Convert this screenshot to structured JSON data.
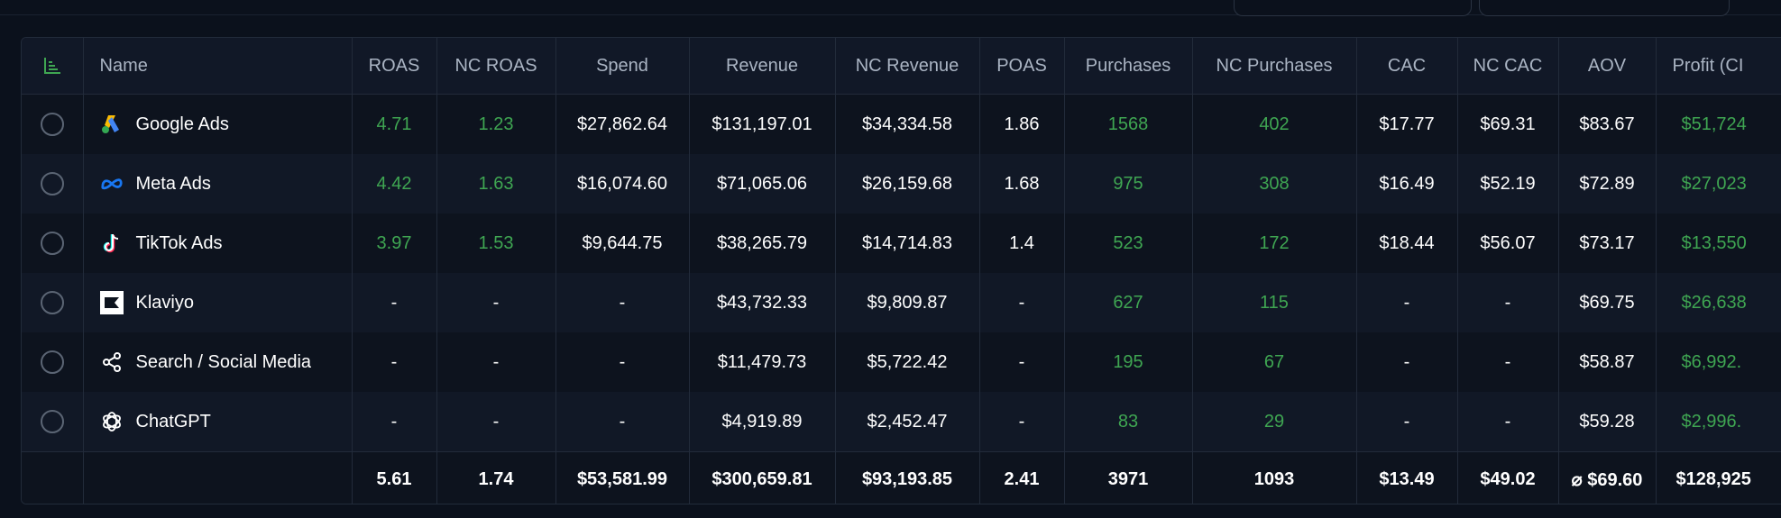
{
  "table": {
    "columns": [
      "Name",
      "ROAS",
      "NC ROAS",
      "Spend",
      "Revenue",
      "NC Revenue",
      "POAS",
      "Purchases",
      "NC Purchases",
      "CAC",
      "NC CAC",
      "AOV",
      "Profit (CI"
    ],
    "rows": [
      {
        "name": "Google Ads",
        "icon": "google-ads-icon",
        "roas": "4.71",
        "nc_roas": "1.23",
        "spend": "$27,862.64",
        "revenue": "$131,197.01",
        "nc_revenue": "$34,334.58",
        "poas": "1.86",
        "purchases": "1568",
        "nc_purchases": "402",
        "cac": "$17.77",
        "nc_cac": "$69.31",
        "aov": "$83.67",
        "profit": "$51,724"
      },
      {
        "name": "Meta Ads",
        "icon": "meta-icon",
        "roas": "4.42",
        "nc_roas": "1.63",
        "spend": "$16,074.60",
        "revenue": "$71,065.06",
        "nc_revenue": "$26,159.68",
        "poas": "1.68",
        "purchases": "975",
        "nc_purchases": "308",
        "cac": "$16.49",
        "nc_cac": "$52.19",
        "aov": "$72.89",
        "profit": "$27,023"
      },
      {
        "name": "TikTok Ads",
        "icon": "tiktok-icon",
        "roas": "3.97",
        "nc_roas": "1.53",
        "spend": "$9,644.75",
        "revenue": "$38,265.79",
        "nc_revenue": "$14,714.83",
        "poas": "1.4",
        "purchases": "523",
        "nc_purchases": "172",
        "cac": "$18.44",
        "nc_cac": "$56.07",
        "aov": "$73.17",
        "profit": "$13,550"
      },
      {
        "name": "Klaviyo",
        "icon": "klaviyo-icon",
        "roas": "-",
        "nc_roas": "-",
        "spend": "-",
        "revenue": "$43,732.33",
        "nc_revenue": "$9,809.87",
        "poas": "-",
        "purchases": "627",
        "nc_purchases": "115",
        "cac": "-",
        "nc_cac": "-",
        "aov": "$69.75",
        "profit": "$26,638"
      },
      {
        "name": "Search / Social Media",
        "icon": "share-icon",
        "roas": "-",
        "nc_roas": "-",
        "spend": "-",
        "revenue": "$11,479.73",
        "nc_revenue": "$5,722.42",
        "poas": "-",
        "purchases": "195",
        "nc_purchases": "67",
        "cac": "-",
        "nc_cac": "-",
        "aov": "$58.87",
        "profit": "$6,992."
      },
      {
        "name": "ChatGPT",
        "icon": "chatgpt-icon",
        "roas": "-",
        "nc_roas": "-",
        "spend": "-",
        "revenue": "$4,919.89",
        "nc_revenue": "$2,452.47",
        "poas": "-",
        "purchases": "83",
        "nc_purchases": "29",
        "cac": "-",
        "nc_cac": "-",
        "aov": "$59.28",
        "profit": "$2,996."
      }
    ],
    "totals": {
      "roas": "5.61",
      "nc_roas": "1.74",
      "spend": "$53,581.99",
      "revenue": "$300,659.81",
      "nc_revenue": "$93,193.85",
      "poas": "2.41",
      "purchases": "3971",
      "nc_purchases": "1093",
      "cac": "$13.49",
      "nc_cac": "$49.02",
      "aov": "⌀ $69.60",
      "profit": "$128,925"
    }
  },
  "colors": {
    "positive": "#3fa652",
    "background": "#0b111c",
    "border": "#222b3a"
  }
}
